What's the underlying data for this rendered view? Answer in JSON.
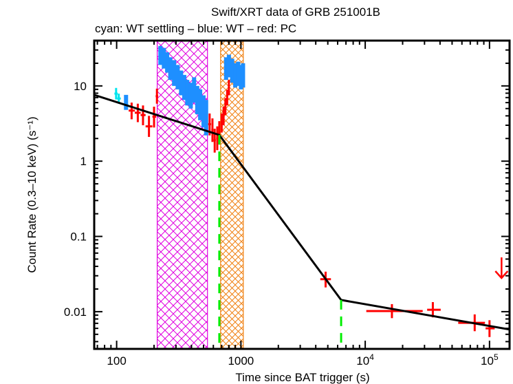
{
  "chart_data": {
    "type": "scatter",
    "title": "Swift/XRT data of GRB 251001B",
    "subtitle": "cyan: WT settling – blue: WT – red: PC",
    "xlabel": "Time since BAT trigger (s)",
    "ylabel": "Count Rate (0.3–10 keV) (s⁻¹)",
    "xscale": "log",
    "yscale": "log",
    "xlim": [
      66,
      145000
    ],
    "ylim": [
      0.0032,
      40
    ],
    "x_tick_labels": [
      {
        "value": 100,
        "label": "100"
      },
      {
        "value": 1000,
        "label": "1000"
      },
      {
        "value": 10000,
        "label": "10",
        "sup": "4"
      },
      {
        "value": 100000,
        "label": "10",
        "sup": "5"
      }
    ],
    "y_tick_labels": [
      {
        "value": 10,
        "label": "10"
      },
      {
        "value": 1,
        "label": "1"
      },
      {
        "value": 0.1,
        "label": "0.1"
      },
      {
        "value": 0.01,
        "label": "0.01"
      }
    ],
    "colors": {
      "wt_settling": "#00e5ee",
      "wt": "#1e8fff",
      "pc": "#ff0000",
      "model": "#000000",
      "breaks": "#00ee00",
      "flare_region_1": "#e000e0",
      "flare_region_2": "#f08010"
    },
    "excluded_regions": [
      {
        "name": "flare-1",
        "x": [
          212,
          538
        ],
        "color_key": "flare_region_1"
      },
      {
        "name": "flare-2",
        "x": [
          686,
          1045
        ],
        "color_key": "flare_region_2"
      }
    ],
    "model": {
      "name": "broken power law",
      "points": [
        [
          66,
          7.6
        ],
        [
          670,
          2.23
        ],
        [
          6400,
          0.0143
        ],
        [
          145000,
          0.0058
        ]
      ],
      "breaks": [
        670,
        6400
      ]
    },
    "series": [
      {
        "name": "WT settling",
        "color_key": "wt_settling",
        "points": [
          {
            "x": 99,
            "y": 7.9,
            "xerr": [
              96,
              102
            ],
            "yerr": [
              6.6,
              9.4
            ]
          },
          {
            "x": 104,
            "y": 6.8,
            "xerr": [
              101,
              108
            ],
            "yerr": [
              5.8,
              7.9
            ]
          }
        ]
      },
      {
        "name": "WT",
        "color_key": "wt",
        "points": [
          {
            "x": 119,
            "y": 6.1,
            "xerr": [
              116,
              122
            ],
            "yerr": [
              4.8,
              7.6
            ]
          },
          {
            "x": 225,
            "y": 26,
            "yerr": [
              19,
              34
            ]
          },
          {
            "x": 240,
            "y": 24,
            "yerr": [
              17,
              32
            ]
          },
          {
            "x": 255,
            "y": 21,
            "yerr": [
              15,
              28
            ]
          },
          {
            "x": 270,
            "y": 17,
            "yerr": [
              12,
              24
            ]
          },
          {
            "x": 290,
            "y": 15,
            "yerr": [
              10,
              22
            ]
          },
          {
            "x": 310,
            "y": 13,
            "yerr": [
              9,
              19
            ]
          },
          {
            "x": 330,
            "y": 11,
            "yerr": [
              7.5,
              16
            ]
          },
          {
            "x": 350,
            "y": 9.5,
            "yerr": [
              6.5,
              14
            ]
          },
          {
            "x": 370,
            "y": 8,
            "yerr": [
              5.5,
              12
            ]
          },
          {
            "x": 395,
            "y": 7.5,
            "yerr": [
              5,
              11
            ]
          },
          {
            "x": 420,
            "y": 9,
            "yerr": [
              6,
              13
            ]
          },
          {
            "x": 445,
            "y": 6.5,
            "yerr": [
              4.2,
              10
            ]
          },
          {
            "x": 470,
            "y": 5.5,
            "yerr": [
              3.5,
              9
            ]
          },
          {
            "x": 500,
            "y": 4.5,
            "yerr": [
              2.8,
              7.5
            ]
          },
          {
            "x": 525,
            "y": 3.8,
            "yerr": [
              2.2,
              6.5
            ]
          },
          {
            "x": 760,
            "y": 17,
            "yerr": [
              12,
              24
            ]
          },
          {
            "x": 800,
            "y": 19,
            "yerr": [
              13,
              26
            ]
          },
          {
            "x": 850,
            "y": 16,
            "yerr": [
              11,
              23
            ]
          },
          {
            "x": 900,
            "y": 14,
            "yerr": [
              9.5,
              20
            ]
          },
          {
            "x": 950,
            "y": 15,
            "yerr": [
              10,
              21
            ]
          },
          {
            "x": 1000,
            "y": 13,
            "yerr": [
              9,
              19
            ]
          },
          {
            "x": 1040,
            "y": 14,
            "yerr": [
              9.5,
              20
            ]
          }
        ]
      },
      {
        "name": "PC",
        "color_key": "pc",
        "points": [
          {
            "x": 132,
            "y": 4.7,
            "xerr": [
              125,
              140
            ],
            "yerr": [
              3.6,
              6.0
            ]
          },
          {
            "x": 148,
            "y": 4.4,
            "xerr": [
              140,
              156
            ],
            "yerr": [
              3.3,
              5.8
            ]
          },
          {
            "x": 163,
            "y": 4.1,
            "xerr": [
              156,
              171
            ],
            "yerr": [
              3.0,
              5.5
            ]
          },
          {
            "x": 182,
            "y": 2.9,
            "xerr": [
              171,
              194
            ],
            "yerr": [
              2.1,
              4.0
            ]
          },
          {
            "x": 200,
            "y": 3.9,
            "xerr": [
              194,
              208
            ],
            "yerr": [
              2.8,
              5.3
            ]
          },
          {
            "x": 211,
            "y": 7.3,
            "xerr": [
              206,
              216
            ],
            "yerr": [
              5.8,
              9.2
            ]
          },
          {
            "x": 560,
            "y": 3.1,
            "xerr": [
              545,
              575
            ],
            "yerr": [
              2.2,
              4.3
            ]
          },
          {
            "x": 590,
            "y": 2.6,
            "xerr": [
              578,
              602
            ],
            "yerr": [
              1.8,
              3.7
            ]
          },
          {
            "x": 615,
            "y": 1.9,
            "xerr": [
              603,
              628
            ],
            "yerr": [
              1.3,
              2.7
            ]
          },
          {
            "x": 645,
            "y": 2.0,
            "xerr": [
              632,
              658
            ],
            "yerr": [
              1.4,
              2.9
            ]
          },
          {
            "x": 670,
            "y": 2.4,
            "xerr": [
              660,
              680
            ],
            "yerr": [
              1.7,
              3.4
            ]
          },
          {
            "x": 700,
            "y": 3.2,
            "xerr": [
              690,
              710
            ],
            "yerr": [
              2.4,
              4.3
            ]
          },
          {
            "x": 725,
            "y": 4.0,
            "xerr": [
              715,
              735
            ],
            "yerr": [
              3.0,
              5.3
            ]
          },
          {
            "x": 750,
            "y": 5.3,
            "xerr": [
              740,
              760
            ],
            "yerr": [
              4.1,
              6.9
            ]
          },
          {
            "x": 775,
            "y": 7.0,
            "xerr": [
              765,
              785
            ],
            "yerr": [
              5.5,
              8.9
            ]
          },
          {
            "x": 800,
            "y": 9.5,
            "xerr": [
              790,
              810
            ],
            "yerr": [
              7.5,
              12
            ]
          },
          {
            "x": 4800,
            "y": 0.027,
            "xerr": [
              4350,
              5300
            ],
            "yerr": [
              0.021,
              0.034
            ]
          },
          {
            "x": 16400,
            "y": 0.0102,
            "xerr": [
              10200,
              29000
            ],
            "yerr": [
              0.0082,
              0.0126
            ]
          },
          {
            "x": 35000,
            "y": 0.0106,
            "xerr": [
              31500,
              40500
            ],
            "yerr": [
              0.0084,
              0.0134
            ]
          },
          {
            "x": 76000,
            "y": 0.0071,
            "xerr": [
              56000,
              92000
            ],
            "yerr": [
              0.0055,
              0.0092
            ]
          },
          {
            "x": 100000,
            "y": 0.006,
            "xerr": [
              93000,
              110000
            ],
            "yerr": [
              0.0046,
              0.0077
            ]
          }
        ]
      },
      {
        "name": "PC upper limit",
        "color_key": "pc",
        "upper_limits": [
          {
            "x": 125000,
            "y": 0.028
          }
        ]
      }
    ]
  }
}
